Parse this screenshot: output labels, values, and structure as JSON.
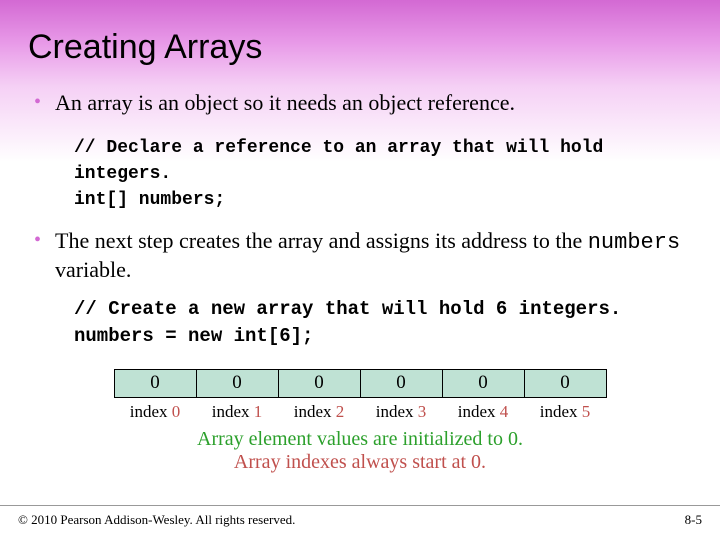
{
  "slide": {
    "title": "Creating Arrays",
    "bullet1": "An array is an object so it needs an object reference.",
    "code1_line1": "// Declare a reference to an array that will hold integers.",
    "code1_line2": "int[] numbers;",
    "bullet2_part1": "The next step creates the array and assigns its address to the ",
    "bullet2_mono": "numbers",
    "bullet2_part2": " variable.",
    "code2_line1": "// Create a new array that will hold 6 integers.",
    "code2_line2": "numbers = new int[6];",
    "array": {
      "cells": [
        "0",
        "0",
        "0",
        "0",
        "0",
        "0"
      ],
      "index_label": "index",
      "indices": [
        "0",
        "1",
        "2",
        "3",
        "4",
        "5"
      ],
      "cell_bg": "#bfe2d4",
      "border_color": "#000000"
    },
    "note_green": "Array element values are initialized to 0.",
    "note_red": "Array indexes always start at 0.",
    "footer_left": "© 2010 Pearson Addison-Wesley. All rights reserved.",
    "footer_right": "8-5"
  },
  "colors": {
    "bullet": "#d369d3",
    "green_note": "#2ca02c",
    "red_note": "#c0504d"
  }
}
